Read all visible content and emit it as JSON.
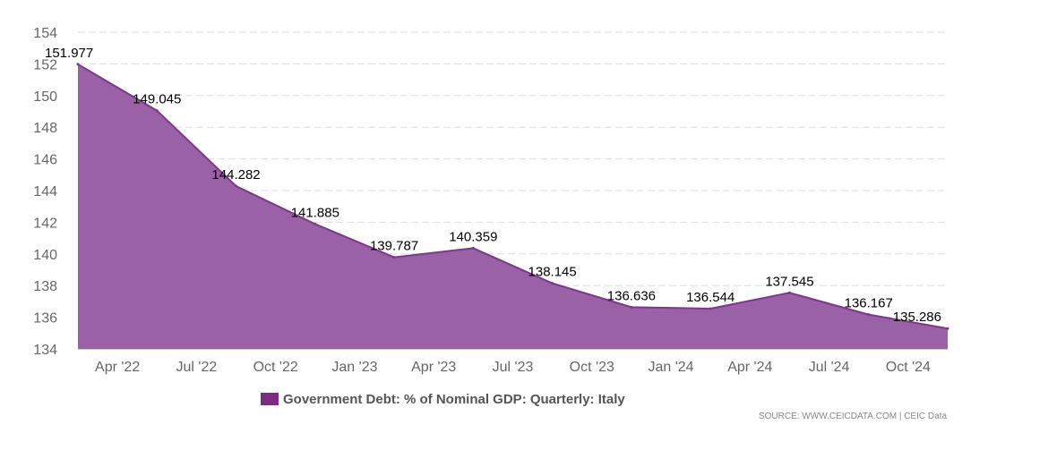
{
  "chart_data": {
    "type": "area",
    "title": "",
    "xlabel": "",
    "ylabel": "",
    "ylim": [
      134,
      154
    ],
    "yticks": [
      134,
      136,
      138,
      140,
      142,
      144,
      146,
      148,
      150,
      152,
      154
    ],
    "grid": true,
    "x": [
      "Mar '22",
      "Jun '22",
      "Sep '22",
      "Dec '22",
      "Mar '23",
      "Jun '23",
      "Sep '23",
      "Dec '23",
      "Mar '24",
      "Jun '24",
      "Sep '24",
      "Dec '24"
    ],
    "xticks": [
      "Apr '22",
      "Jul '22",
      "Oct '22",
      "Jan '23",
      "Apr '23",
      "Jul '23",
      "Oct '23",
      "Jan '24",
      "Apr '24",
      "Jul '24",
      "Oct '24"
    ],
    "series": [
      {
        "name": "Government Debt: % of Nominal GDP: Quarterly: Italy",
        "values": [
          151.977,
          149.045,
          144.282,
          141.885,
          139.787,
          140.359,
          138.145,
          136.636,
          136.544,
          137.545,
          136.167,
          135.286
        ],
        "labels": [
          "151.977",
          "149.045",
          "144.282",
          "141.885",
          "139.787",
          "140.359",
          "138.145",
          "136.636",
          "136.544",
          "137.545",
          "136.167",
          "135.286"
        ]
      }
    ],
    "legend": "bottom-center",
    "fill_color": "#9a61a6",
    "line_color": "#7a3a87",
    "legend_color": "#7b2d84"
  },
  "source_text": "SOURCE: WWW.CEICDATA.COM | CEIC Data"
}
